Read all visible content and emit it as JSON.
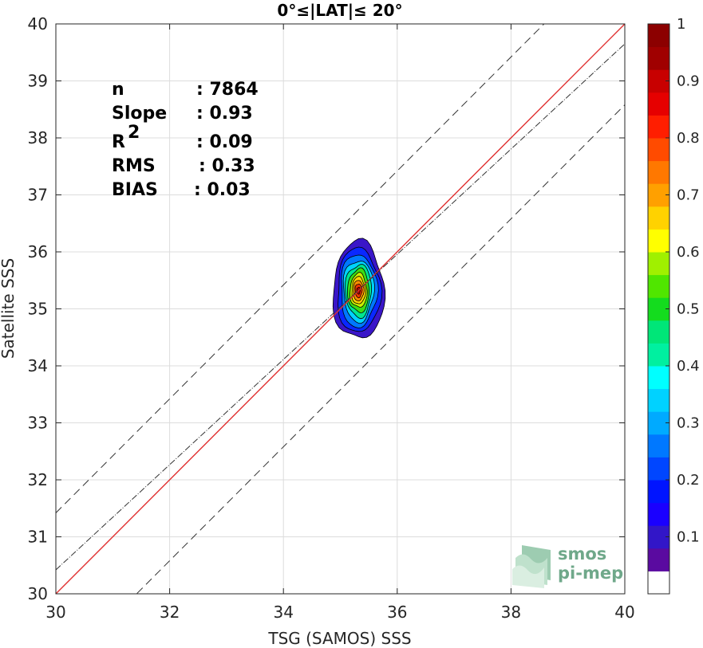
{
  "chart_data": {
    "type": "contour",
    "title": "0°≤|LAT|≤ 20°",
    "xlabel": "TSG (SAMOS) SSS",
    "ylabel": "Satellite SSS",
    "xlim": [
      30,
      40
    ],
    "ylim": [
      30,
      40
    ],
    "xticks": [
      "30",
      "32",
      "34",
      "36",
      "38",
      "40"
    ],
    "yticks": [
      "30",
      "31",
      "32",
      "33",
      "34",
      "35",
      "36",
      "37",
      "38",
      "39",
      "40"
    ],
    "grid": true,
    "stats": [
      {
        "label": "n",
        "value": ": 7864"
      },
      {
        "label": "Slope",
        "value": ": 0.93"
      },
      {
        "label": "R",
        "sup": "2",
        "value": ": 0.09"
      },
      {
        "label": "RMS",
        "value": ": 0.33"
      },
      {
        "label": "BIAS",
        "value": ": 0.03"
      }
    ],
    "lines": [
      {
        "name": "1:1",
        "style": "solid",
        "color": "#e03030",
        "points": [
          [
            30,
            30
          ],
          [
            40,
            40
          ]
        ]
      },
      {
        "name": "fit",
        "style": "dash-dot",
        "color": "#333333",
        "points": [
          [
            30,
            30.42
          ],
          [
            40,
            39.65
          ]
        ]
      },
      {
        "name": "upper",
        "style": "dashed",
        "color": "#333333",
        "points": [
          [
            30,
            31.42
          ],
          [
            40,
            41.42
          ]
        ]
      },
      {
        "name": "lower",
        "style": "dashed",
        "color": "#333333",
        "points": [
          [
            30,
            28.58
          ],
          [
            40,
            38.58
          ]
        ]
      }
    ],
    "contour": {
      "center": [
        35.32,
        35.32
      ],
      "levels": [
        {
          "level": 0.05,
          "rx": 0.45,
          "ry": 0.86,
          "color": "#3a16c8"
        },
        {
          "level": 0.15,
          "rx": 0.38,
          "ry": 0.74,
          "color": "#0a28ff"
        },
        {
          "level": 0.25,
          "rx": 0.32,
          "ry": 0.64,
          "color": "#0078ff"
        },
        {
          "level": 0.35,
          "rx": 0.27,
          "ry": 0.54,
          "color": "#00d2ff"
        },
        {
          "level": 0.45,
          "rx": 0.23,
          "ry": 0.46,
          "color": "#00e690"
        },
        {
          "level": 0.55,
          "rx": 0.19,
          "ry": 0.38,
          "color": "#3cdc14"
        },
        {
          "level": 0.65,
          "rx": 0.15,
          "ry": 0.3,
          "color": "#c8f000"
        },
        {
          "level": 0.72,
          "rx": 0.12,
          "ry": 0.24,
          "color": "#ffd200"
        },
        {
          "level": 0.8,
          "rx": 0.09,
          "ry": 0.18,
          "color": "#ff8c00"
        },
        {
          "level": 0.88,
          "rx": 0.06,
          "ry": 0.12,
          "color": "#f03200"
        },
        {
          "level": 0.95,
          "rx": 0.03,
          "ry": 0.06,
          "color": "#b40000"
        }
      ]
    },
    "colorbar": {
      "colors": [
        "#ffffff",
        "#5a0aa0",
        "#3216c8",
        "#1a00ff",
        "#0014ff",
        "#0046ff",
        "#0078ff",
        "#00aaff",
        "#00d2ff",
        "#00ffff",
        "#00f0a0",
        "#00e678",
        "#14dc1e",
        "#50e600",
        "#a0f000",
        "#ffff00",
        "#ffd200",
        "#ffa000",
        "#ff7800",
        "#ff4b00",
        "#ff1e00",
        "#e60000",
        "#c80000",
        "#a00000",
        "#8c0000"
      ],
      "ticks": [
        {
          "value": 0.1,
          "label": "0.1"
        },
        {
          "value": 0.2,
          "label": "0.2"
        },
        {
          "value": 0.3,
          "label": "0.3"
        },
        {
          "value": 0.4,
          "label": "0.4"
        },
        {
          "value": 0.5,
          "label": "0.5"
        },
        {
          "value": 0.6,
          "label": "0.6"
        },
        {
          "value": 0.7,
          "label": "0.7"
        },
        {
          "value": 0.8,
          "label": "0.8"
        },
        {
          "value": 0.9,
          "label": "0.9"
        },
        {
          "value": 1.0,
          "label": "1"
        }
      ]
    }
  },
  "logo": {
    "line1": "smos",
    "line2": "pi-mep"
  }
}
